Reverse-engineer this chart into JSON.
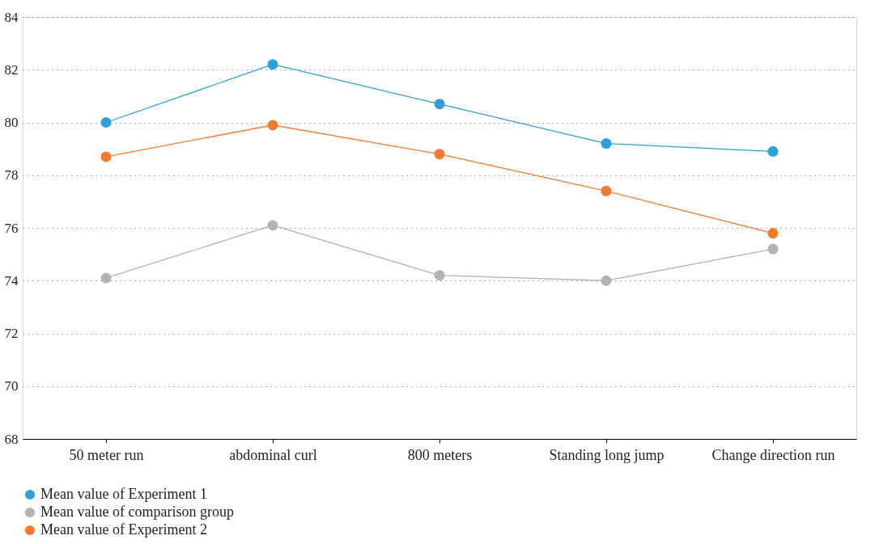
{
  "chart_data": {
    "type": "line",
    "categories": [
      "50 meter run",
      "abdominal curl",
      "800 meters",
      "Standing long jump",
      "Change direction run"
    ],
    "series": [
      {
        "name": "Mean value of Experiment 1",
        "color": "#2e9fdb",
        "values": [
          80.0,
          82.2,
          80.7,
          79.2,
          78.9
        ]
      },
      {
        "name": "Mean value of comparison group",
        "color": "#b3b3b3",
        "values": [
          74.1,
          76.1,
          74.2,
          74.0,
          75.2
        ]
      },
      {
        "name": "Mean value of Experiment 2",
        "color": "#f47b2c",
        "values": [
          78.7,
          79.9,
          78.8,
          77.4,
          75.8
        ]
      }
    ],
    "ylim": [
      68,
      84
    ],
    "yticks": [
      68,
      70,
      72,
      74,
      76,
      78,
      80,
      82,
      84
    ],
    "grid": "y",
    "legend": "bottom left",
    "marker": "circle",
    "line_style": "solid"
  }
}
